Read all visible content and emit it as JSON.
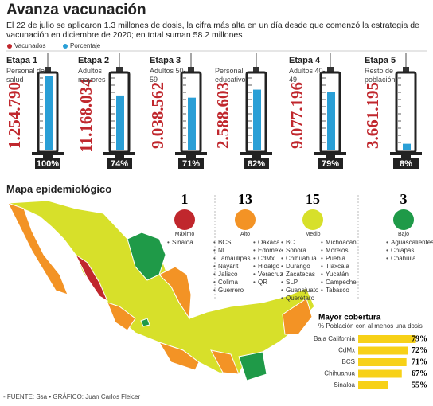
{
  "header": {
    "title": "Avanza vacunación",
    "subtitle": "El 22 de julio se aplicaron 1.3 millones de dosis, la cifra más alta en un día desde que comenzó la estrategia de vacunación en diciembre de 2020; en total suman  58.2 millones"
  },
  "chart_data": [
    {
      "type": "syringe",
      "categories": [
        "Etapa 1",
        "Etapa 2",
        "Etapa 3",
        null,
        "Etapa 4",
        "Etapa 5"
      ],
      "descriptions": [
        "Personal de salud",
        "Adultos mayores",
        "Adultos 50-59",
        "Personal educativo",
        "Adultos 40-49",
        "Resto de población"
      ],
      "ylim": [
        0,
        100
      ],
      "series": [
        {
          "name": "Vacunados",
          "color": "#c0272d",
          "values": [
            1254790,
            11168034,
            9038562,
            2588603,
            9077196,
            3661195
          ],
          "value_labels": [
            "1.254.790",
            "11.168.034",
            "9.038.562",
            "2.588.603",
            "9.077.196",
            "3.661.195"
          ]
        },
        {
          "name": "Porcentaje",
          "color": "#2a9fd6",
          "values": [
            100,
            74,
            71,
            82,
            79,
            8
          ],
          "value_labels": [
            "100%",
            "74%",
            "71%",
            "82%",
            "79%",
            "8%"
          ]
        }
      ]
    },
    {
      "type": "bar",
      "title": "Mayor cobertura",
      "subtitle": "% Población con al menos una dosis",
      "categories": [
        "Baja California",
        "CdMx",
        "BCS",
        "Chihuahua",
        "Sinaloa"
      ],
      "values": [
        79,
        72,
        71,
        67,
        55
      ],
      "value_labels": [
        "79%",
        "72%",
        "71%",
        "67%",
        "55%"
      ],
      "color": "#f7d117",
      "xlim": [
        30,
        80
      ]
    }
  ],
  "map": {
    "title": "Mapa epidemiológico",
    "levels": [
      {
        "count": 1,
        "name": "Máximo",
        "color": "#c0272d",
        "states": [
          "Sinaloa"
        ]
      },
      {
        "count": 13,
        "name": "Alto",
        "color": "#f39325",
        "states": [
          "BCS",
          "NL",
          "Tamaulipas",
          "Nayarit",
          "Jalisco",
          "Colima",
          "Guerrero",
          "Oaxaca",
          "Edomex",
          "CdMx",
          "Hidalgo",
          "Veracruz",
          "QR"
        ]
      },
      {
        "count": 15,
        "name": "Medio",
        "color": "#d7e02a",
        "states": [
          "BC",
          "Sonora",
          "Chihuahua",
          "Durango",
          "Zacatecas",
          "SLP",
          "Guanajuato",
          "Querétaro",
          "Michoacán",
          "Morelos",
          "Puebla",
          "Tlaxcala",
          "Yucatán",
          "Campeche",
          "Tabasco"
        ]
      },
      {
        "count": 3,
        "name": "Bajo",
        "color": "#1f9a48",
        "states": [
          "Aguascalientes",
          "Chiapas",
          "Coahuila"
        ]
      }
    ]
  },
  "footer": "- FUENTE: Ssa • GRÁFICO: Juan Carlos Fleicer"
}
